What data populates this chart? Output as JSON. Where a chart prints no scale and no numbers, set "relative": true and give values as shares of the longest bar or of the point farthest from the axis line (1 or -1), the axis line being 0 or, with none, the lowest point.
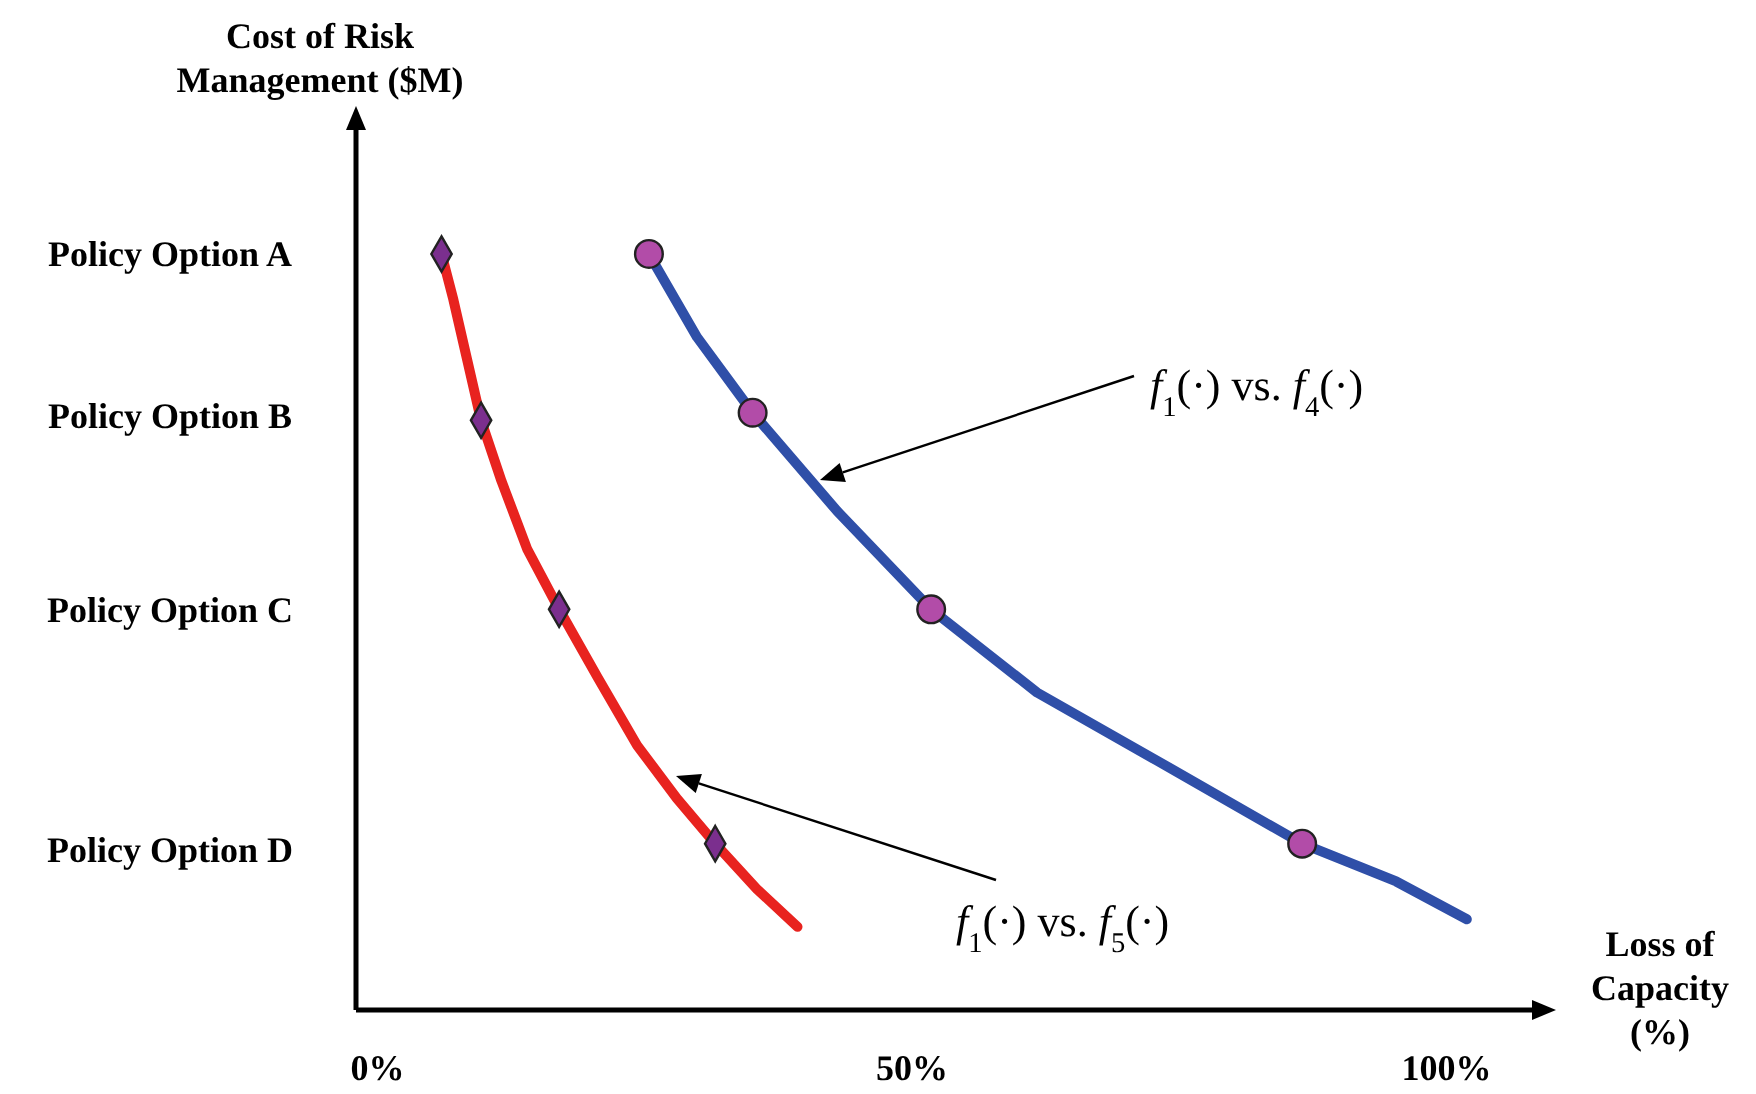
{
  "chart_data": {
    "type": "line",
    "relative": true,
    "xlabel": "Loss of Capacity (%)",
    "ylabel": "Cost of Risk Management ($M)",
    "xlim": [
      -2,
      108
    ],
    "xticks": [
      {
        "value": 0,
        "label": "0%"
      },
      {
        "value": 50,
        "label": "50%"
      },
      {
        "value": 100,
        "label": "100%"
      }
    ],
    "grid": false,
    "legend": false,
    "line_style": "solid",
    "series": [
      {
        "marker": "none",
        "color": "#e8231f",
        "x": [
          6.0,
          7.1,
          8.4,
          9.7,
          11.6,
          14.0,
          17,
          20.6,
          24.3,
          28.0,
          31.6,
          35.5,
          39.3
        ],
        "values": [
          1,
          0.94,
          0.86,
          0.78,
          0.7,
          0.61,
          0.53,
          0.44,
          0.35,
          0.28,
          0.22,
          0.16,
          0.11
        ]
      },
      {
        "type": "scatter",
        "marker": "diamond",
        "color": "#7b2f8e",
        "x": [
          6.0,
          9.7,
          17,
          31.6
        ],
        "values": [
          1,
          0.78,
          0.53,
          0.22
        ]
      },
      {
        "marker": "none",
        "color": "#2f4fa8",
        "x": [
          25.4,
          29.9,
          35.1,
          43,
          51.8,
          61.7,
          72.9,
          86.5,
          95.3,
          101.9
        ],
        "values": [
          1,
          0.89,
          0.79,
          0.66,
          0.53,
          0.42,
          0.33,
          0.22,
          0.17,
          0.12
        ]
      },
      {
        "type": "scatter",
        "marker": "circle",
        "color": "#b24ca8",
        "x": [
          25.4,
          35.1,
          51.8,
          86.5
        ],
        "values": [
          1,
          0.79,
          0.53,
          0.22
        ]
      }
    ],
    "annotations": [
      "Policy Option A",
      "Policy Option B",
      "Policy Option C",
      "Policy Option D",
      "f$_{1}$(·) vs. f$_{4}$(·)",
      "f$_{1}$(·) vs. f$_{5}$(·)"
    ]
  }
}
